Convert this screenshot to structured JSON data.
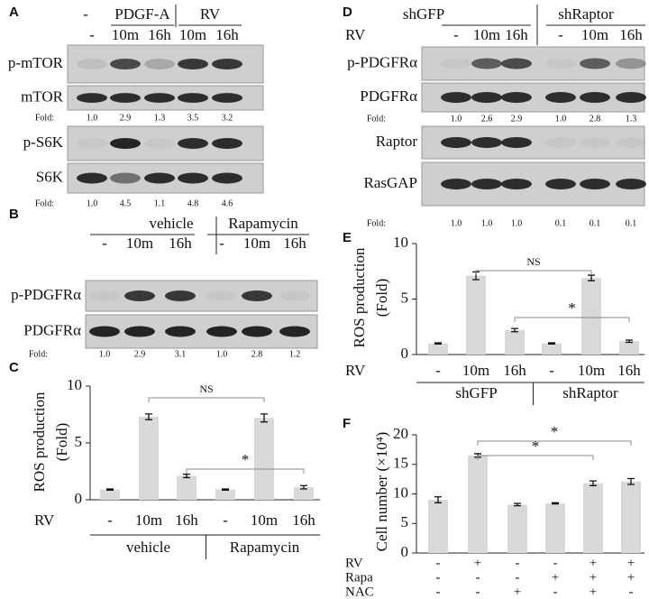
{
  "panel_labels": [
    "A",
    "B",
    "C",
    "D",
    "E",
    "F"
  ],
  "blots": [
    {
      "header_groups": [
        "-",
        "PDGF-A",
        "RV"
      ],
      "lanes": [
        "-",
        "10m",
        "16h",
        "10m",
        "16h"
      ],
      "rows": [
        "p-mTOR",
        "mTOR",
        "p-S6K",
        "S6K"
      ],
      "fold_label": "Fold:",
      "folds": [
        [
          "1.0",
          "2.9",
          "1.3",
          "3.5",
          "3.2"
        ],
        [
          "1.0",
          "4.5",
          "1.1",
          "4.8",
          "4.6"
        ]
      ]
    },
    {
      "header_groups": [
        "vehicle",
        "Rapamycin"
      ],
      "lanes": [
        "-",
        "10m",
        "16h",
        "-",
        "10m",
        "16h"
      ],
      "rows": [
        "p-PDGFRα",
        "PDGFRα"
      ],
      "fold_label": "Fold:",
      "folds": [
        [
          "1.0",
          "2.9",
          "3.1",
          "1.0",
          "2.8",
          "1.2"
        ]
      ]
    },
    {
      "header_groups": [
        "shGFP",
        "shRaptor"
      ],
      "lane_row_label": "RV",
      "lanes": [
        "-",
        "10m",
        "16h",
        "-",
        "10m",
        "16h"
      ],
      "rows": [
        "p-PDGFRα",
        "PDGFRα",
        "Raptor",
        "RasGAP"
      ],
      "fold_label": "Fold:",
      "folds": [
        [
          "1.0",
          "2.6",
          "2.9",
          "1.0",
          "2.8",
          "1.3"
        ],
        [
          "1.0",
          "1.0",
          "1.0",
          "0.1",
          "0.1",
          "0.1"
        ]
      ]
    }
  ],
  "chart_data": [
    {
      "type": "bar",
      "ylabel_lines": [
        "ROS production",
        "(Fold)"
      ],
      "row_label": "RV",
      "categories": [
        "-",
        "10m",
        "16h",
        "-",
        "10m",
        "16h"
      ],
      "groups": [
        "vehicle",
        "Rapamycin"
      ],
      "values": [
        0.9,
        7.3,
        2.1,
        0.9,
        7.2,
        1.1
      ],
      "errors": [
        0.05,
        0.25,
        0.15,
        0.05,
        0.35,
        0.15
      ],
      "color": "#d9d9d9",
      "ylim": [
        0,
        10
      ],
      "yticks": [
        0,
        5,
        10
      ],
      "brackets": [
        {
          "from": 1,
          "to": 4,
          "label": "NS"
        },
        {
          "from": 2,
          "to": 5,
          "label": "*"
        }
      ]
    },
    {
      "type": "bar",
      "ylabel_lines": [
        "ROS production",
        "(Fold)"
      ],
      "row_label": "RV",
      "categories": [
        "-",
        "10m",
        "16h",
        "-",
        "10m",
        "16h"
      ],
      "groups": [
        "shGFP",
        "shRaptor"
      ],
      "values": [
        1.0,
        7.1,
        2.2,
        1.0,
        6.9,
        1.2
      ],
      "errors": [
        0.05,
        0.35,
        0.15,
        0.05,
        0.25,
        0.1
      ],
      "color": "#d9d9d9",
      "ylim": [
        0,
        10
      ],
      "yticks": [
        0,
        5,
        10
      ],
      "brackets": [
        {
          "from": 1,
          "to": 4,
          "label": "NS"
        },
        {
          "from": 2,
          "to": 5,
          "label": "*"
        }
      ]
    },
    {
      "type": "bar",
      "ylabel_lines": [
        "Cell number (×10⁴)"
      ],
      "conditions": [
        {
          "name": "RV",
          "marks": [
            "-",
            "+",
            "-",
            "-",
            "+",
            "+"
          ]
        },
        {
          "name": "Rapa",
          "marks": [
            "-",
            "-",
            "-",
            "+",
            "+",
            "+"
          ]
        },
        {
          "name": "NAC",
          "marks": [
            "-",
            "-",
            "+",
            "-",
            "+",
            "-"
          ]
        }
      ],
      "values": [
        9.0,
        16.5,
        8.2,
        8.4,
        11.8,
        12.1
      ],
      "errors": [
        0.5,
        0.3,
        0.2,
        0.1,
        0.4,
        0.5
      ],
      "color": "#d9d9d9",
      "ylim": [
        0,
        20
      ],
      "yticks": [
        0,
        5,
        10,
        15,
        20
      ],
      "brackets": [
        {
          "from": 1,
          "to": 4,
          "label": "*"
        },
        {
          "from": 1,
          "to": 5,
          "label": "*"
        }
      ]
    }
  ]
}
